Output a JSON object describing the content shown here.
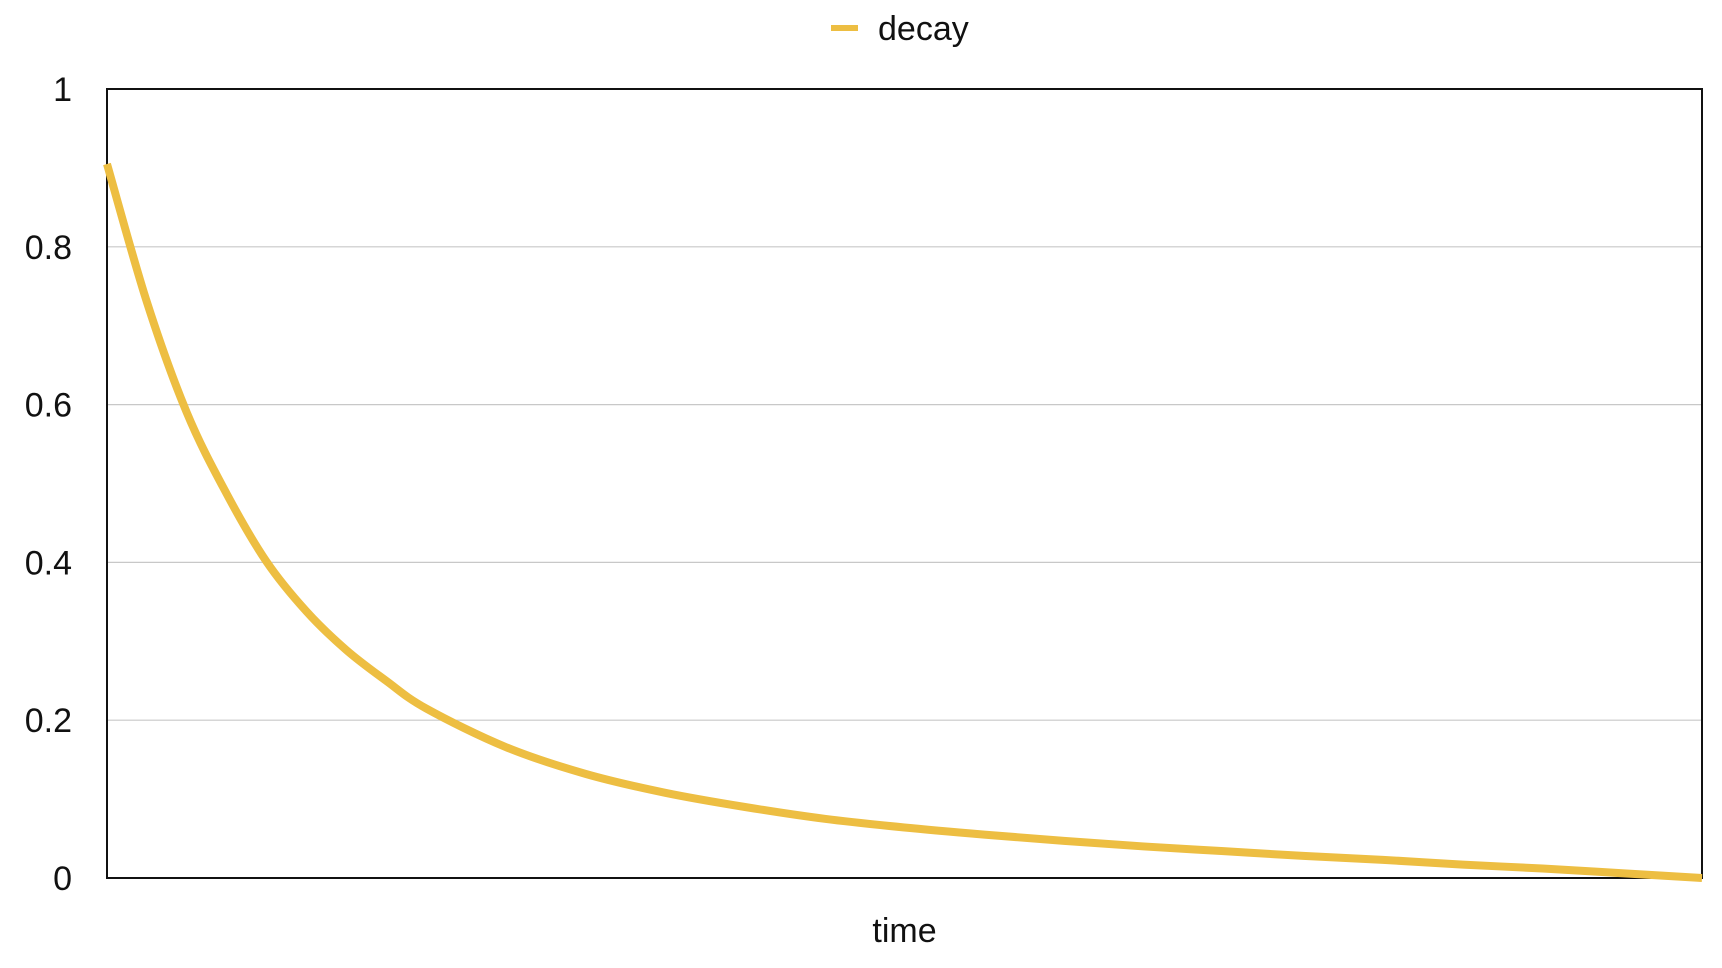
{
  "chart_data": {
    "type": "line",
    "title": "",
    "xlabel": "time",
    "ylabel": "",
    "ylim": [
      0,
      1
    ],
    "yticks": [
      0,
      0.2,
      0.4,
      0.6,
      0.8,
      1
    ],
    "ytick_labels": [
      "0",
      "0.2",
      "0.4",
      "0.6",
      "0.8",
      "1"
    ],
    "grid": "horizontal",
    "legend": "top-center",
    "x": [
      0,
      0.025,
      0.05,
      0.075,
      0.1,
      0.125,
      0.15,
      0.175,
      0.2,
      0.25,
      0.3,
      0.35,
      0.4,
      0.45,
      0.5,
      0.55,
      0.6,
      0.65,
      0.7,
      0.75,
      0.8,
      0.85,
      0.9,
      0.95,
      1.0
    ],
    "series": [
      {
        "name": "decay",
        "color": "#EDBE42",
        "values": [
          0.905,
          0.73,
          0.59,
          0.487,
          0.401,
          0.338,
          0.289,
          0.25,
          0.215,
          0.166,
          0.132,
          0.108,
          0.09,
          0.075,
          0.064,
          0.055,
          0.047,
          0.04,
          0.034,
          0.028,
          0.023,
          0.017,
          0.012,
          0.006,
          0.0
        ]
      }
    ]
  }
}
